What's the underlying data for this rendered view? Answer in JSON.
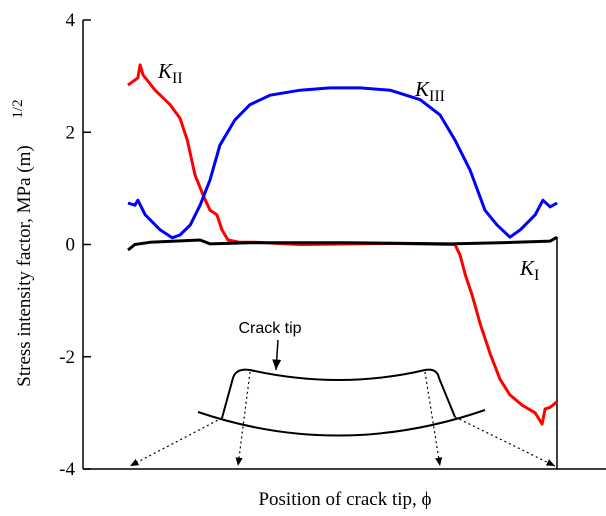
{
  "chart_data": {
    "type": "line",
    "ylabel": "Stress intensity factor, MPa (m)",
    "ylabel_superscript": "1/2",
    "xlabel": "Position of crack tip, ϕ",
    "annotation": "Crack tip",
    "xlim": [
      -10.5,
      111.4
    ],
    "ylim": [
      -4,
      4
    ],
    "yticks": [
      -4,
      -2,
      0,
      2,
      4
    ],
    "series": [
      {
        "name": "KII",
        "color": "#ff0000",
        "x": [
          0,
          2.3,
          2.8,
          3.5,
          6.3,
          9.8,
          12.1,
          13.8,
          15.6,
          17.5,
          19.1,
          20.7,
          21.9,
          23.3,
          26.1,
          29.6,
          40.1,
          61.1,
          76.2,
          77.4,
          78.6,
          80.2,
          82.1,
          84.4,
          86.7,
          89.0,
          91.8,
          94.9,
          96.5,
          97.2,
          98.4,
          100
        ],
        "values": [
          2.84,
          2.97,
          3.2,
          3.02,
          2.75,
          2.49,
          2.25,
          1.86,
          1.24,
          0.88,
          0.61,
          0.53,
          0.26,
          0.08,
          0.04,
          0.04,
          0,
          0.02,
          0,
          -0.19,
          -0.54,
          -0.9,
          -1.42,
          -1.95,
          -2.4,
          -2.68,
          -2.86,
          -3.0,
          -3.2,
          -2.93,
          -2.9,
          -2.8
        ]
      },
      {
        "name": "KIII",
        "color": "#0000ff",
        "x": [
          0,
          1.6,
          2.3,
          4.0,
          7.5,
          10.3,
          12.1,
          14.5,
          16.8,
          19.1,
          21.4,
          24.9,
          28.4,
          33.1,
          40.1,
          47.1,
          54.1,
          61.1,
          68.1,
          72.7,
          76.2,
          79.7,
          83.2,
          86.0,
          89.0,
          91.4,
          94.9,
          96.7,
          98.4,
          100
        ],
        "values": [
          0.74,
          0.7,
          0.79,
          0.53,
          0.26,
          0.12,
          0.17,
          0.35,
          0.7,
          1.15,
          1.77,
          2.22,
          2.49,
          2.66,
          2.75,
          2.79,
          2.79,
          2.75,
          2.58,
          2.31,
          1.86,
          1.33,
          0.61,
          0.35,
          0.13,
          0.26,
          0.53,
          0.79,
          0.67,
          0.74
        ]
      },
      {
        "name": "KI",
        "color": "#000000",
        "x": [
          0,
          1.6,
          5.1,
          16.8,
          19.1,
          28.4,
          51.7,
          75.1,
          86.7,
          98.4,
          100
        ],
        "values": [
          -0.1,
          0,
          0.04,
          0.08,
          0.01,
          0.03,
          0.03,
          0.01,
          0.03,
          0.06,
          0.13
        ]
      }
    ]
  }
}
